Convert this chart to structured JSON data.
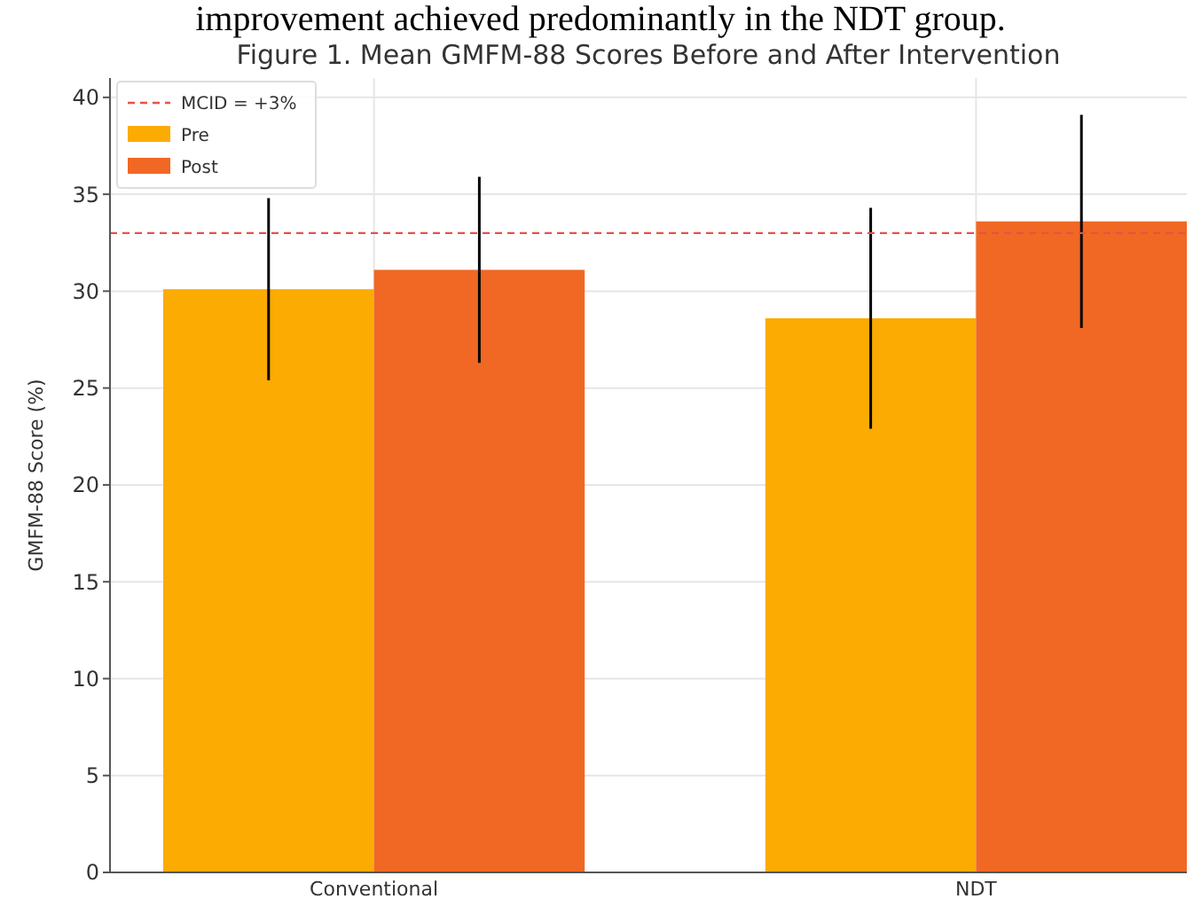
{
  "chart_data": {
    "type": "bar",
    "title": "Figure 1. Mean GMFM-88 Scores Before and After Intervention",
    "ylabel": "GMFM-88 Score (%)",
    "annotations": [
      "improvement achieved predominantly in the NDT group."
    ],
    "categories": [
      "Conventional",
      "NDT"
    ],
    "series": [
      {
        "name": "Pre",
        "color": "#fbab02",
        "values": [
          30.1,
          28.6
        ],
        "errors": [
          4.7,
          5.7
        ]
      },
      {
        "name": "Post",
        "color": "#f06824",
        "values": [
          31.1,
          33.6
        ],
        "errors": [
          4.8,
          5.5
        ]
      }
    ],
    "ylim": [
      0,
      41
    ],
    "yticks": [
      0,
      5,
      10,
      15,
      20,
      25,
      30,
      35,
      40
    ],
    "grid": true,
    "legend": "top left",
    "ref_lines": [
      {
        "axis": "y",
        "value": 33,
        "label": "MCID = +3%",
        "color": "#e8504a",
        "line_style": "dashed"
      }
    ]
  }
}
